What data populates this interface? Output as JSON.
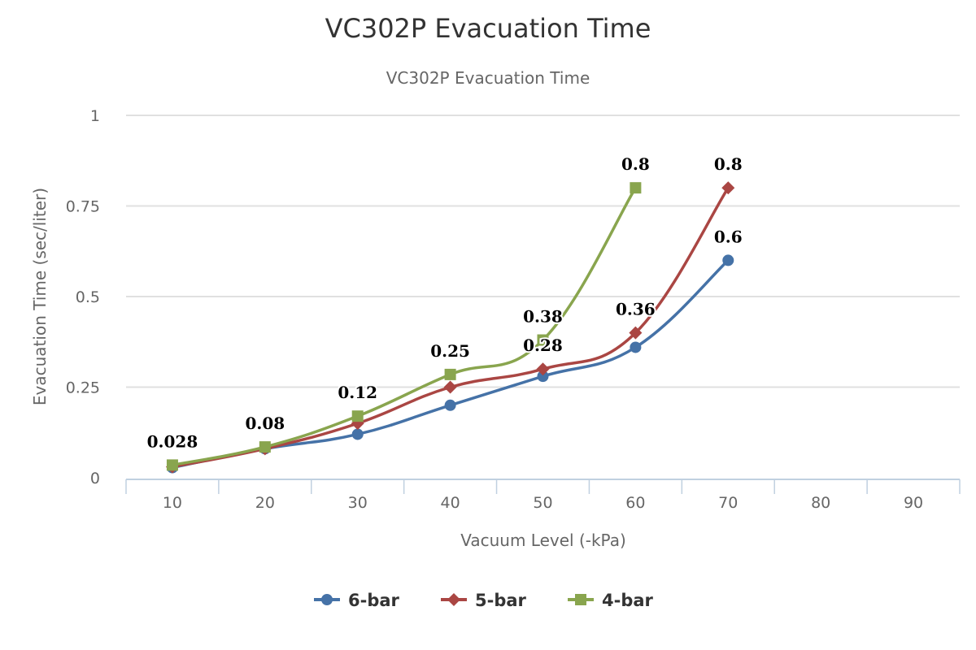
{
  "chart_data": {
    "type": "line",
    "title": "VC302P Evacuation Time",
    "subtitle": "VC302P Evacuation Time",
    "xlabel": "Vacuum Level (-kPa)",
    "ylabel": "Evacuation Time (sec/liter)",
    "categories": [
      "10",
      "20",
      "30",
      "40",
      "50",
      "60",
      "70",
      "80",
      "90"
    ],
    "ylim": [
      0,
      1
    ],
    "yticks": [
      0,
      0.25,
      0.5,
      0.75,
      1
    ],
    "ytick_labels": [
      "0",
      "0.25",
      "0.5",
      "0.75",
      "1"
    ],
    "grid": true,
    "legend_position": "bottom",
    "series": [
      {
        "name": "6-bar",
        "color": "#4572a7",
        "marker": "circle",
        "values": [
          0.028,
          0.08,
          0.12,
          0.2,
          0.28,
          0.36,
          0.6,
          null,
          null
        ]
      },
      {
        "name": "5-bar",
        "color": "#aa4643",
        "marker": "diamond",
        "values": [
          0.03,
          0.08,
          0.15,
          0.25,
          0.3,
          0.4,
          0.8,
          null,
          null
        ]
      },
      {
        "name": "4-bar",
        "color": "#89a54e",
        "marker": "square",
        "values": [
          0.035,
          0.085,
          0.17,
          0.285,
          0.38,
          0.8,
          null,
          null,
          null
        ]
      }
    ],
    "data_labels": [
      {
        "category": "10",
        "text": "0.028",
        "value": 0.035
      },
      {
        "category": "20",
        "text": "0.08",
        "value": 0.085
      },
      {
        "category": "30",
        "text": "0.12",
        "value": 0.17
      },
      {
        "category": "40",
        "text": "0.25",
        "value": 0.285
      },
      {
        "category": "50",
        "text": "0.38",
        "value": 0.38
      },
      {
        "category": "50",
        "text": "0.28",
        "value": 0.3
      },
      {
        "category": "60",
        "text": "0.8",
        "value": 0.8
      },
      {
        "category": "60",
        "text": "0.36",
        "value": 0.4
      },
      {
        "category": "70",
        "text": "0.8",
        "value": 0.8
      },
      {
        "category": "70",
        "text": "0.6",
        "value": 0.6
      }
    ]
  }
}
